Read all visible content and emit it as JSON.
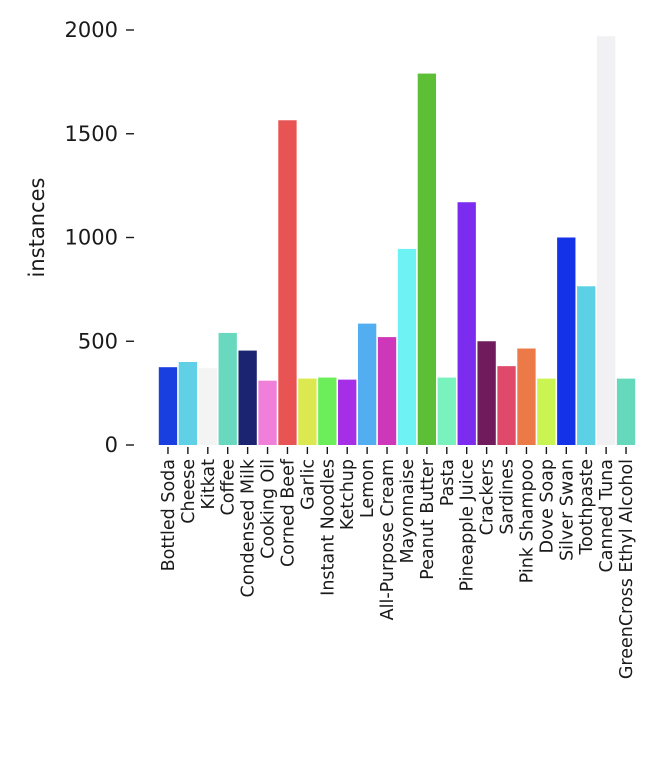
{
  "chart_data": {
    "type": "bar",
    "xlabel": "",
    "ylabel": "instances",
    "ylim": [
      0,
      2000
    ],
    "yticks": [
      0,
      500,
      1000,
      1500,
      2000
    ],
    "grid": false,
    "categories": [
      "Bottled Soda",
      "Cheese",
      "Kitkat",
      "Coffee",
      "Condensed Milk",
      "Cooking Oil",
      "Corned Beef",
      "Garlic",
      "Instant Noodles",
      "Ketchup",
      "Lemon",
      "All-Purpose Cream",
      "Mayonnaise",
      "Peanut Butter",
      "Pasta",
      "Pineapple Juice",
      "Crackers",
      "Sardines",
      "Pink Shampoo",
      "Dove Soap",
      "Silver Swan",
      "Toothpaste",
      "Canned Tuna",
      "GreenCross Ethyl Alcohol"
    ],
    "values": [
      375,
      400,
      370,
      540,
      455,
      310,
      1565,
      320,
      325,
      315,
      585,
      520,
      945,
      1790,
      325,
      1170,
      500,
      380,
      465,
      320,
      1000,
      765,
      1970,
      320
    ],
    "colors": [
      "#1a3fe0",
      "#5fd0e6",
      "#f4f4f4",
      "#68d9bf",
      "#1b2470",
      "#ef7fd8",
      "#e85454",
      "#dbe84f",
      "#6cee5a",
      "#a52ee6",
      "#52aef0",
      "#cf37ba",
      "#6ff2f4",
      "#5cbf36",
      "#79f2bd",
      "#7c2cee",
      "#6f1b5c",
      "#e04a6a",
      "#ec7a48",
      "#c9f452",
      "#1432e8",
      "#5cd1e6",
      "#f1f1f3",
      "#66d9bd"
    ]
  }
}
